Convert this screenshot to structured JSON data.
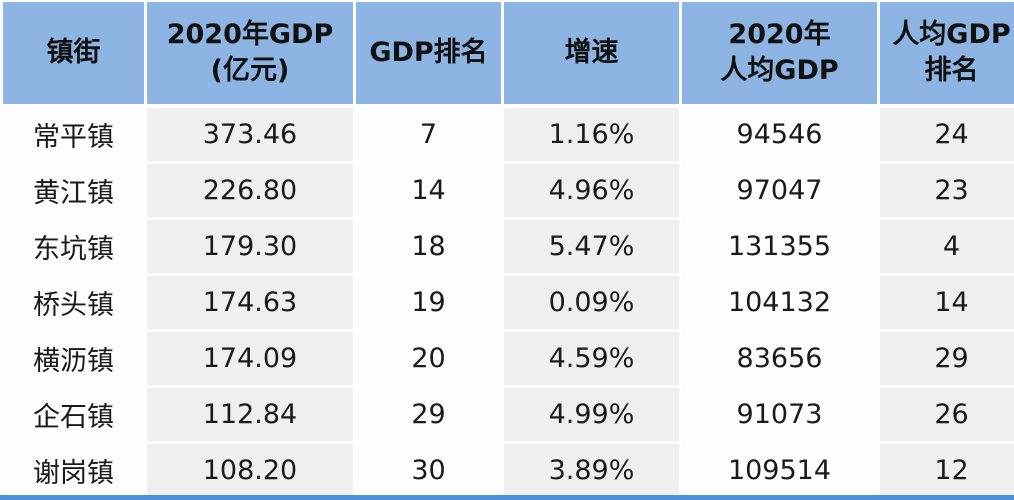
{
  "table": {
    "headers": [
      {
        "line1": "镇街",
        "line2": ""
      },
      {
        "line1": "2020年GDP",
        "line2": "(亿元)"
      },
      {
        "line1": "GDP排名",
        "line2": ""
      },
      {
        "line1": "增速",
        "line2": ""
      },
      {
        "line1": "2020年",
        "line2": "人均GDP"
      },
      {
        "line1": "人均GDP",
        "line2": "排名"
      }
    ],
    "rows": [
      [
        "常平镇",
        "373.46",
        "7",
        "1.16%",
        "94546",
        "24"
      ],
      [
        "黄江镇",
        "226.80",
        "14",
        "4.96%",
        "97047",
        "23"
      ],
      [
        "东坑镇",
        "179.30",
        "18",
        "5.47%",
        "131355",
        "4"
      ],
      [
        "桥头镇",
        "174.63",
        "19",
        "0.09%",
        "104132",
        "14"
      ],
      [
        "横沥镇",
        "174.09",
        "20",
        "4.59%",
        "83656",
        "29"
      ],
      [
        "企石镇",
        "112.84",
        "29",
        "4.99%",
        "91073",
        "26"
      ],
      [
        "谢岗镇",
        "108.20",
        "30",
        "3.89%",
        "109514",
        "12"
      ]
    ]
  },
  "colors": {
    "header_bg": "#8db4e2",
    "gray_col_bg": "#efefef",
    "white_col_bg": "#fdfdfd",
    "bottom_bar": "#4f8fd9"
  }
}
